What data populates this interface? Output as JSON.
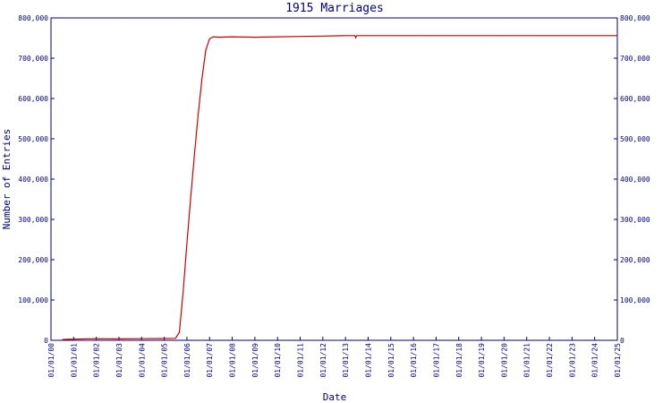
{
  "chart_data": {
    "type": "line",
    "title": "1915 Marriages",
    "xlabel": "Date",
    "ylabel": "Number of Entries",
    "ylim": [
      0,
      800000
    ],
    "yticks": [
      0,
      100000,
      200000,
      300000,
      400000,
      500000,
      600000,
      700000,
      800000
    ],
    "ytick_labels": [
      "0",
      "100,000",
      "200,000",
      "300,000",
      "400,000",
      "500,000",
      "600,000",
      "700,000",
      "800,000"
    ],
    "xticks": [
      "01/01/00",
      "01/01/01",
      "01/01/02",
      "01/01/03",
      "01/01/04",
      "01/01/05",
      "01/01/06",
      "01/01/07",
      "01/01/08",
      "01/01/09",
      "01/01/10",
      "01/01/11",
      "01/01/12",
      "01/01/13",
      "01/01/14",
      "01/01/15",
      "01/01/16",
      "01/01/17",
      "01/01/18",
      "01/01/19",
      "01/01/20",
      "01/01/21",
      "01/01/22",
      "01/01/23",
      "01/01/24",
      "01/01/25"
    ],
    "grid": false,
    "series_color": "#cc0000",
    "axis_color": "#000080",
    "series": [
      {
        "x": [
          "2000-07-01",
          "2001-01-01",
          "2002-01-01",
          "2003-01-01",
          "2004-01-01",
          "2005-01-01",
          "2005-07-01",
          "2005-09-01",
          "2005-11-01",
          "2006-01-01",
          "2006-03-01",
          "2006-05-01",
          "2006-07-01",
          "2006-09-01",
          "2006-11-01",
          "2007-01-01",
          "2007-03-01",
          "2007-06-01",
          "2008-01-01",
          "2009-01-01",
          "2010-01-01",
          "2011-01-01",
          "2012-01-01",
          "2013-01-01",
          "2013-06-01",
          "2013-06-15",
          "2013-07-01",
          "2014-01-01",
          "2015-01-01",
          "2020-01-01",
          "2025-01-01"
        ],
        "y": [
          2000,
          3000,
          4000,
          3500,
          4000,
          4500,
          5000,
          20000,
          120000,
          240000,
          350000,
          460000,
          560000,
          650000,
          720000,
          748000,
          753000,
          752000,
          753000,
          752000,
          753000,
          754000,
          755000,
          756000,
          756000,
          751000,
          756000,
          756000,
          756000,
          756000,
          756000
        ]
      }
    ]
  }
}
